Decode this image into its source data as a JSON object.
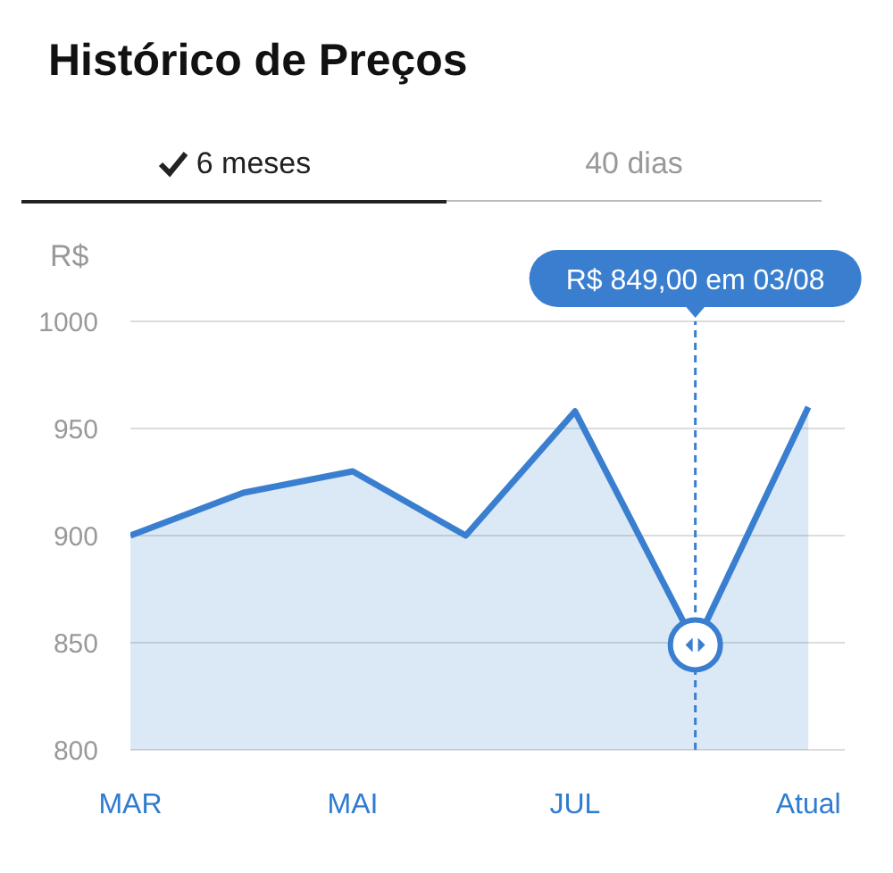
{
  "chart_data": {
    "type": "area",
    "title": "Histórico de Preços",
    "ylabel": "R$",
    "x": [
      "--03-01",
      "--04-01",
      "--05-01",
      "--06-01",
      "--07-01",
      "--08-03",
      "--09-03"
    ],
    "xlim": [
      "--03-01",
      "--09-13"
    ],
    "xticks": [
      {
        "value": "--03-01",
        "label": "MAR"
      },
      {
        "value": "--05-01",
        "label": "MAI"
      },
      {
        "value": "--07-01",
        "label": "JUL"
      },
      {
        "value": "--09-03",
        "label": "Atual"
      }
    ],
    "series": [
      {
        "color": "#3a7fcf",
        "values": [
          900,
          920,
          930,
          900,
          958,
          849,
          960
        ]
      }
    ],
    "ylim": [
      800,
      1000
    ],
    "yticks": [
      800,
      850,
      900,
      950,
      1000
    ],
    "grid": "y",
    "marker": "none",
    "line_style": "solid",
    "ref_lines": [
      {
        "axis": "x",
        "value": "--08-03",
        "label": "R$ 849,00 em 03/08",
        "color": "#3a7fcf",
        "line_style": "dashed"
      }
    ],
    "annotations": [
      "6 meses",
      "40 dias"
    ]
  }
}
